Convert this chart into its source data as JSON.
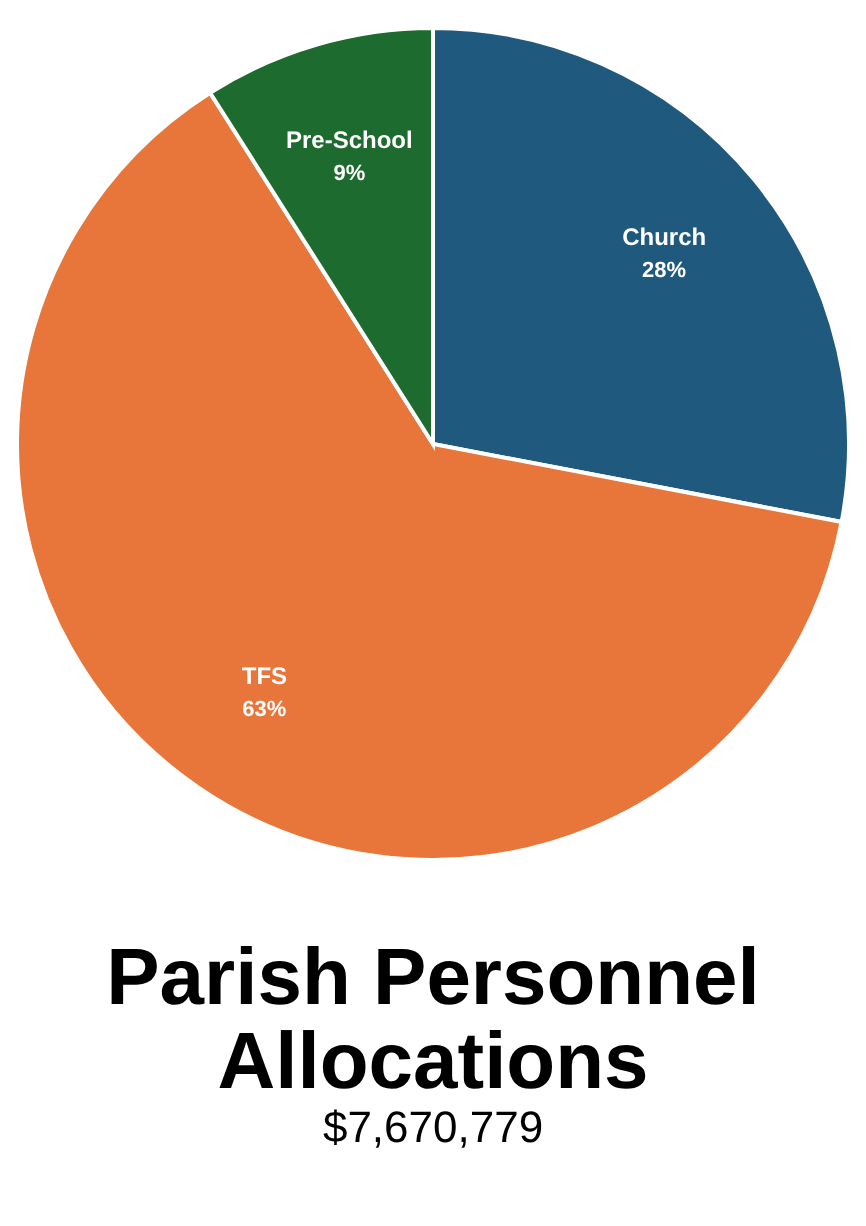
{
  "chart_data": {
    "type": "pie",
    "title": "Parish Personnel Allocations",
    "subtitle": "$7,670,779",
    "categories": [
      "Church",
      "TFS",
      "Pre-School"
    ],
    "values": [
      28,
      63,
      9
    ],
    "colors": [
      "#1f5a7e",
      "#e8763a",
      "#1e6b2f"
    ],
    "value_labels": [
      "28%",
      "63%",
      "9%"
    ]
  }
}
